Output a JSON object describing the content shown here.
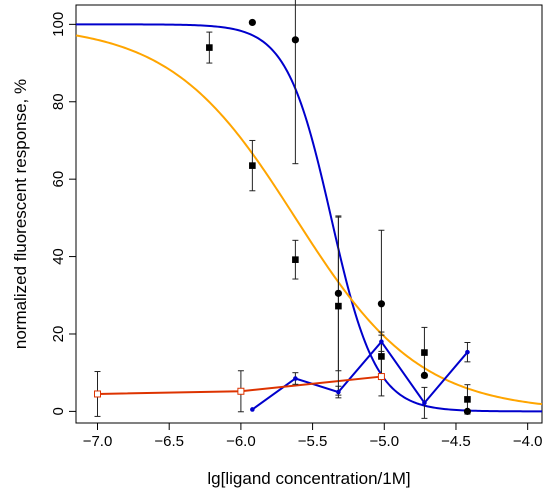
{
  "chart_data": {
    "type": "scatter",
    "title": "",
    "xlabel": "lg[ligand concentration/1M]",
    "ylabel": "normalized fluorescent response, %",
    "xlim": [
      -7.15,
      -3.9
    ],
    "ylim": [
      -3,
      105
    ],
    "xticks": [
      -7.0,
      -6.5,
      -6.0,
      -5.5,
      -5.0,
      -4.5,
      -4.0
    ],
    "xtick_labels": [
      "−7.0",
      "−6.5",
      "−6.0",
      "−5.5",
      "−5.0",
      "−4.5",
      "−4.0"
    ],
    "yticks": [
      0,
      20,
      40,
      60,
      80,
      100
    ],
    "ytick_labels": [
      "0",
      "20",
      "40",
      "60",
      "80",
      "100"
    ],
    "grid": false,
    "legend": "none",
    "series": [
      {
        "kind": "points",
        "marker": "circle",
        "color": "#000000",
        "points": [
          {
            "x": -5.92,
            "y": 100.5,
            "err": 0
          },
          {
            "x": -5.62,
            "y": 96,
            "err": 32
          },
          {
            "x": -5.32,
            "y": 30.5,
            "err": 20
          },
          {
            "x": -5.02,
            "y": 27.8,
            "err": 19
          },
          {
            "x": -4.72,
            "y": 9.3,
            "err": 0
          },
          {
            "x": -4.42,
            "y": 0,
            "err": 0
          }
        ]
      },
      {
        "kind": "points",
        "marker": "square",
        "color": "#000000",
        "points": [
          {
            "x": -6.22,
            "y": 94,
            "err": 4
          },
          {
            "x": -5.92,
            "y": 63.5,
            "err": 6.5
          },
          {
            "x": -5.62,
            "y": 39.2,
            "err": 5
          },
          {
            "x": -5.32,
            "y": 27.2,
            "err": 23
          },
          {
            "x": -5.02,
            "y": 14.2,
            "err": 5.5
          },
          {
            "x": -4.72,
            "y": 15.2,
            "err": 6.5
          },
          {
            "x": -4.42,
            "y": 3.1,
            "err": 3.8
          }
        ]
      },
      {
        "kind": "connected",
        "marker": "dot",
        "color": "#0000cc",
        "points": [
          {
            "x": -5.92,
            "y": 0.5,
            "err": 0
          },
          {
            "x": -5.62,
            "y": 8.5,
            "err": 1.5
          },
          {
            "x": -5.32,
            "y": 5,
            "err": 1.5
          },
          {
            "x": -5.02,
            "y": 18,
            "err": 2.5
          },
          {
            "x": -4.72,
            "y": 2.2,
            "err": 4
          },
          {
            "x": -4.42,
            "y": 15.3,
            "err": 2.5
          }
        ]
      },
      {
        "kind": "connected",
        "marker": "open-square",
        "color": "#dd3300",
        "points": [
          {
            "x": -7.0,
            "y": 4.5,
            "err": 5.8
          },
          {
            "x": -6.0,
            "y": 5.2,
            "err": 5.3
          },
          {
            "x": -5.02,
            "y": 9,
            "err": 5
          }
        ]
      }
    ],
    "fits": [
      {
        "kind": "sigmoid",
        "color": "#0000cc",
        "top": 100,
        "bottom": 0,
        "ec50_log": -5.37,
        "hill": 2.8
      },
      {
        "kind": "sigmoid",
        "color": "#ffa500",
        "top": 100,
        "bottom": 0,
        "ec50_log": -5.62,
        "hill": 1.0
      }
    ]
  }
}
